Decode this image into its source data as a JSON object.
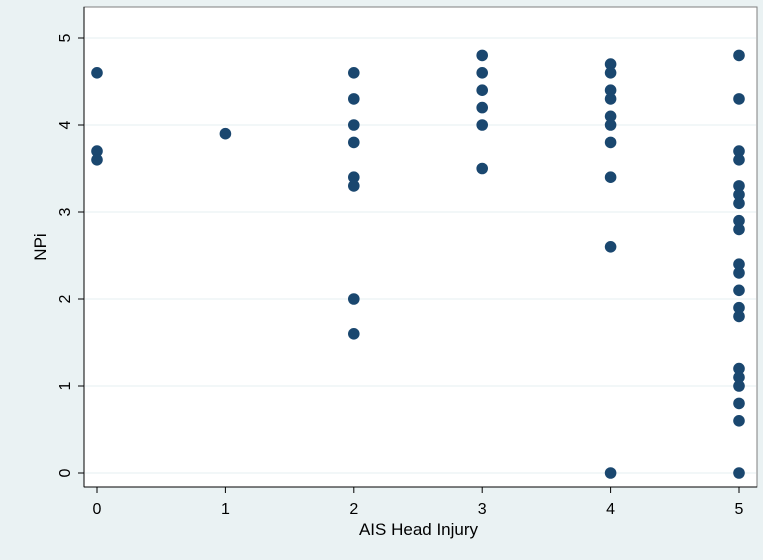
{
  "chart_data": {
    "type": "scatter",
    "title": "",
    "xlabel": "AIS Head Injury",
    "ylabel": "NPi",
    "xlim": [
      -0.1,
      5.05
    ],
    "ylim": [
      -0.15,
      5.1
    ],
    "x_ticks": [
      "0",
      "1",
      "2",
      "3",
      "4",
      "5"
    ],
    "y_ticks": [
      "0",
      "1",
      "2",
      "3",
      "4",
      "5"
    ],
    "grid": true,
    "legend": "none",
    "colors": {
      "marker": "#1a476f",
      "grid": "#eaf2f3",
      "plot_background": "#ffffff",
      "outer_background": "#eaf2f3",
      "axis": "#000000"
    },
    "points": [
      {
        "x": 0,
        "y": 4.6
      },
      {
        "x": 0,
        "y": 3.7
      },
      {
        "x": 0,
        "y": 3.6
      },
      {
        "x": 1,
        "y": 3.9
      },
      {
        "x": 2,
        "y": 4.6
      },
      {
        "x": 2,
        "y": 4.3
      },
      {
        "x": 2,
        "y": 4.0
      },
      {
        "x": 2,
        "y": 3.8
      },
      {
        "x": 2,
        "y": 3.4
      },
      {
        "x": 2,
        "y": 3.3
      },
      {
        "x": 2,
        "y": 2.0
      },
      {
        "x": 2,
        "y": 1.6
      },
      {
        "x": 3,
        "y": 4.8
      },
      {
        "x": 3,
        "y": 4.6
      },
      {
        "x": 3,
        "y": 4.4
      },
      {
        "x": 3,
        "y": 4.2
      },
      {
        "x": 3,
        "y": 4.0
      },
      {
        "x": 3,
        "y": 3.5
      },
      {
        "x": 4,
        "y": 4.7
      },
      {
        "x": 4,
        "y": 4.6
      },
      {
        "x": 4,
        "y": 4.4
      },
      {
        "x": 4,
        "y": 4.3
      },
      {
        "x": 4,
        "y": 4.1
      },
      {
        "x": 4,
        "y": 4.0
      },
      {
        "x": 4,
        "y": 3.8
      },
      {
        "x": 4,
        "y": 3.4
      },
      {
        "x": 4,
        "y": 2.6
      },
      {
        "x": 4,
        "y": 0.0
      },
      {
        "x": 5,
        "y": 4.8
      },
      {
        "x": 5,
        "y": 4.3
      },
      {
        "x": 5,
        "y": 3.7
      },
      {
        "x": 5,
        "y": 3.6
      },
      {
        "x": 5,
        "y": 3.3
      },
      {
        "x": 5,
        "y": 3.2
      },
      {
        "x": 5,
        "y": 3.1
      },
      {
        "x": 5,
        "y": 2.9
      },
      {
        "x": 5,
        "y": 2.8
      },
      {
        "x": 5,
        "y": 2.4
      },
      {
        "x": 5,
        "y": 2.3
      },
      {
        "x": 5,
        "y": 2.1
      },
      {
        "x": 5,
        "y": 1.9
      },
      {
        "x": 5,
        "y": 1.8
      },
      {
        "x": 5,
        "y": 1.2
      },
      {
        "x": 5,
        "y": 1.1
      },
      {
        "x": 5,
        "y": 1.0
      },
      {
        "x": 5,
        "y": 0.8
      },
      {
        "x": 5,
        "y": 0.6
      },
      {
        "x": 5,
        "y": 0.0
      }
    ]
  }
}
